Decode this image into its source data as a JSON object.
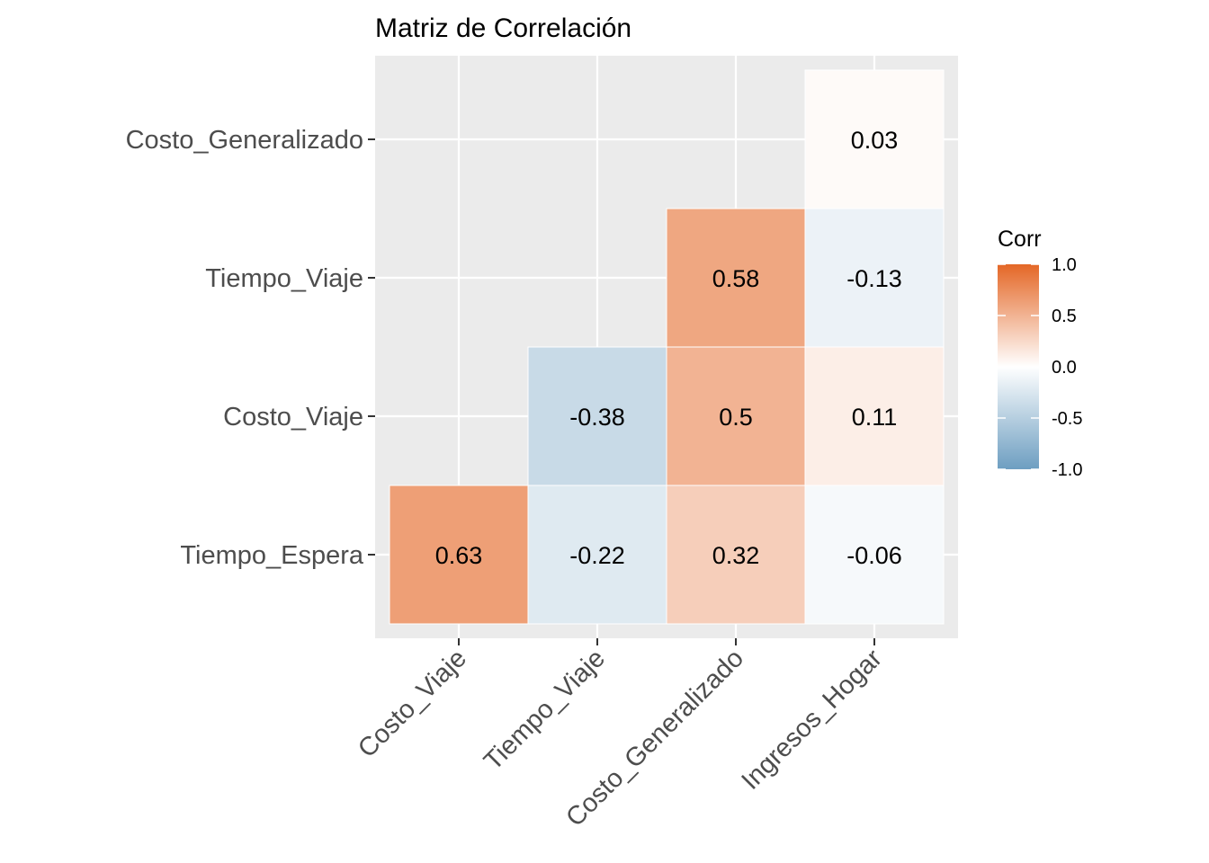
{
  "chart_data": {
    "type": "heatmap",
    "title": "Matriz de Correlación",
    "x_categories": [
      "Costo_Viaje",
      "Tiempo_Viaje",
      "Costo_Generalizado",
      "Ingresos_Hogar"
    ],
    "y_categories": [
      "Tiempo_Espera",
      "Costo_Viaje",
      "Tiempo_Viaje",
      "Costo_Generalizado"
    ],
    "cells": [
      {
        "x": "Costo_Viaje",
        "y": "Tiempo_Espera",
        "value": 0.63,
        "label": "0.63"
      },
      {
        "x": "Tiempo_Viaje",
        "y": "Tiempo_Espera",
        "value": -0.22,
        "label": "-0.22"
      },
      {
        "x": "Costo_Generalizado",
        "y": "Tiempo_Espera",
        "value": 0.32,
        "label": "0.32"
      },
      {
        "x": "Ingresos_Hogar",
        "y": "Tiempo_Espera",
        "value": -0.06,
        "label": "-0.06"
      },
      {
        "x": "Tiempo_Viaje",
        "y": "Costo_Viaje",
        "value": -0.38,
        "label": "-0.38"
      },
      {
        "x": "Costo_Generalizado",
        "y": "Costo_Viaje",
        "value": 0.5,
        "label": "0.5"
      },
      {
        "x": "Ingresos_Hogar",
        "y": "Costo_Viaje",
        "value": 0.11,
        "label": "0.11"
      },
      {
        "x": "Costo_Generalizado",
        "y": "Tiempo_Viaje",
        "value": 0.58,
        "label": "0.58"
      },
      {
        "x": "Ingresos_Hogar",
        "y": "Tiempo_Viaje",
        "value": -0.13,
        "label": "-0.13"
      },
      {
        "x": "Ingresos_Hogar",
        "y": "Costo_Generalizado",
        "value": 0.03,
        "label": "0.03"
      }
    ],
    "legend": {
      "title": "Corr",
      "position": "right",
      "ticks": [
        "1.0",
        "0.5",
        "0.0",
        "-0.5",
        "-1.0"
      ],
      "tick_values": [
        1.0,
        0.5,
        0.0,
        -0.5,
        -1.0
      ],
      "limits": [
        -1,
        1
      ],
      "colors": {
        "low": "#6D9EC1",
        "mid": "#FFFFFF",
        "high": "#E46726"
      }
    },
    "panel_background": "#EBEBEB",
    "grid": true
  }
}
